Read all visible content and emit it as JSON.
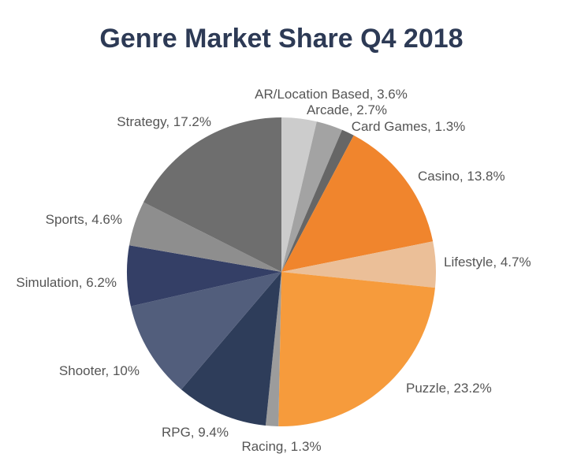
{
  "chart_data": {
    "type": "pie",
    "title": "Genre Market Share Q4 2018",
    "categories": [
      "AR/Location Based",
      "Arcade",
      "Card Games",
      "Casino",
      "Lifestyle",
      "Puzzle",
      "Racing",
      "RPG",
      "Shooter",
      "Simulation",
      "Sports",
      "Strategy"
    ],
    "values": [
      3.6,
      2.7,
      1.3,
      13.8,
      4.7,
      23.2,
      1.3,
      9.4,
      10,
      6.2,
      4.6,
      17.2
    ],
    "value_labels": [
      ", 3.6%",
      ", 2.7%",
      ", 1.3%",
      ", 13.8%",
      ", 4.7%",
      ", 23.2%",
      ", 1.3%",
      ", 9.4%",
      ", 10%",
      ", 6.2%",
      ", 4.6%",
      ", 17.2%"
    ],
    "colors": [
      "#cccccc",
      "#a3a3a3",
      "#666666",
      "#f0852d",
      "#ebbf98",
      "#f69b3c",
      "#9c9c9c",
      "#2e3d5a",
      "#525e7c",
      "#343f66",
      "#8e8e8e",
      "#6e6e6e"
    ]
  }
}
